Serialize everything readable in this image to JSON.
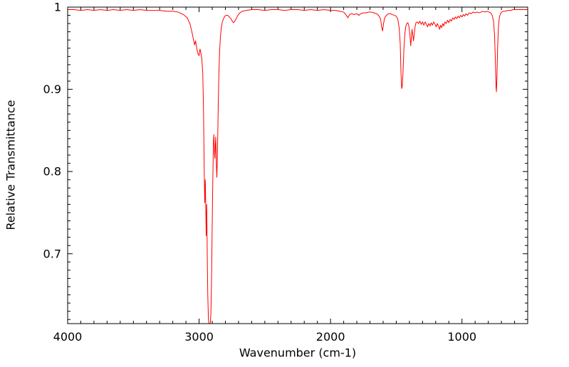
{
  "chart_data": {
    "type": "line",
    "xlabel": "Wavenumber (cm-1)",
    "ylabel": "Relative Transmittance",
    "background_color": "#ffffff",
    "line_color": "#ff0000",
    "axis_color": "#000000",
    "legend": "none",
    "grid": false,
    "x_axis": {
      "min": 500,
      "max": 4000,
      "reversed": true,
      "major_ticks": [
        4000,
        3000,
        2000,
        1000
      ],
      "major_tick_labels": [
        "4000",
        "3000",
        "2000",
        "1000"
      ],
      "minor_tick_interval": 100
    },
    "y_axis": {
      "min": 0.615,
      "max": 1.0,
      "major_ticks": [
        0.7,
        0.8,
        0.9,
        1
      ],
      "major_tick_labels": [
        "0.7",
        "0.8",
        "0.9",
        "1"
      ],
      "minor_tick_interval": 0.01
    },
    "series": [
      {
        "name": "IR transmittance spectrum",
        "points": [
          [
            4000,
            0.997
          ],
          [
            3950,
            0.997
          ],
          [
            3900,
            0.996
          ],
          [
            3850,
            0.997
          ],
          [
            3800,
            0.996
          ],
          [
            3750,
            0.997
          ],
          [
            3700,
            0.996
          ],
          [
            3650,
            0.997
          ],
          [
            3600,
            0.996
          ],
          [
            3550,
            0.997
          ],
          [
            3500,
            0.996
          ],
          [
            3450,
            0.997
          ],
          [
            3400,
            0.996
          ],
          [
            3350,
            0.996
          ],
          [
            3300,
            0.996
          ],
          [
            3250,
            0.995
          ],
          [
            3200,
            0.995
          ],
          [
            3160,
            0.994
          ],
          [
            3120,
            0.991
          ],
          [
            3090,
            0.987
          ],
          [
            3070,
            0.98
          ],
          [
            3055,
            0.97
          ],
          [
            3042,
            0.96
          ],
          [
            3034,
            0.954
          ],
          [
            3027,
            0.959
          ],
          [
            3018,
            0.95
          ],
          [
            3008,
            0.943
          ],
          [
            3000,
            0.941
          ],
          [
            2993,
            0.949
          ],
          [
            2986,
            0.944
          ],
          [
            2980,
            0.938
          ],
          [
            2972,
            0.92
          ],
          [
            2966,
            0.87
          ],
          [
            2961,
            0.8
          ],
          [
            2957,
            0.762
          ],
          [
            2953,
            0.79
          ],
          [
            2949,
            0.755
          ],
          [
            2946,
            0.722
          ],
          [
            2942,
            0.76
          ],
          [
            2938,
            0.7
          ],
          [
            2934,
            0.65
          ],
          [
            2929,
            0.62
          ],
          [
            2925,
            0.6145
          ],
          [
            2920,
            0.6135
          ],
          [
            2915,
            0.615
          ],
          [
            2910,
            0.628
          ],
          [
            2905,
            0.672
          ],
          [
            2901,
            0.725
          ],
          [
            2897,
            0.775
          ],
          [
            2893,
            0.815
          ],
          [
            2890,
            0.838
          ],
          [
            2888,
            0.845
          ],
          [
            2885,
            0.833
          ],
          [
            2882,
            0.82
          ],
          [
            2880,
            0.816
          ],
          [
            2877,
            0.827
          ],
          [
            2874,
            0.842
          ],
          [
            2871,
            0.831
          ],
          [
            2868,
            0.806
          ],
          [
            2865,
            0.793
          ],
          [
            2862,
            0.809
          ],
          [
            2858,
            0.843
          ],
          [
            2854,
            0.884
          ],
          [
            2849,
            0.921
          ],
          [
            2844,
            0.946
          ],
          [
            2838,
            0.963
          ],
          [
            2831,
            0.975
          ],
          [
            2823,
            0.982
          ],
          [
            2814,
            0.986
          ],
          [
            2804,
            0.989
          ],
          [
            2794,
            0.99
          ],
          [
            2782,
            0.99
          ],
          [
            2770,
            0.988
          ],
          [
            2758,
            0.986
          ],
          [
            2748,
            0.983
          ],
          [
            2738,
            0.981
          ],
          [
            2728,
            0.983
          ],
          [
            2718,
            0.986
          ],
          [
            2705,
            0.99
          ],
          [
            2690,
            0.993
          ],
          [
            2670,
            0.995
          ],
          [
            2640,
            0.996
          ],
          [
            2600,
            0.997
          ],
          [
            2550,
            0.997
          ],
          [
            2500,
            0.996
          ],
          [
            2450,
            0.997
          ],
          [
            2400,
            0.997
          ],
          [
            2350,
            0.996
          ],
          [
            2300,
            0.997
          ],
          [
            2250,
            0.997
          ],
          [
            2200,
            0.996
          ],
          [
            2150,
            0.997
          ],
          [
            2100,
            0.996
          ],
          [
            2050,
            0.997
          ],
          [
            2000,
            0.996
          ],
          [
            1960,
            0.996
          ],
          [
            1930,
            0.995
          ],
          [
            1900,
            0.994
          ],
          [
            1880,
            0.99
          ],
          [
            1868,
            0.987
          ],
          [
            1855,
            0.991
          ],
          [
            1840,
            0.992
          ],
          [
            1820,
            0.991
          ],
          [
            1800,
            0.992
          ],
          [
            1785,
            0.99
          ],
          [
            1770,
            0.992
          ],
          [
            1750,
            0.993
          ],
          [
            1730,
            0.993
          ],
          [
            1710,
            0.994
          ],
          [
            1690,
            0.994
          ],
          [
            1670,
            0.993
          ],
          [
            1650,
            0.992
          ],
          [
            1635,
            0.99
          ],
          [
            1620,
            0.986
          ],
          [
            1610,
            0.975
          ],
          [
            1604,
            0.971
          ],
          [
            1597,
            0.98
          ],
          [
            1588,
            0.987
          ],
          [
            1575,
            0.99
          ],
          [
            1560,
            0.992
          ],
          [
            1545,
            0.992
          ],
          [
            1530,
            0.991
          ],
          [
            1515,
            0.99
          ],
          [
            1500,
            0.989
          ],
          [
            1488,
            0.985
          ],
          [
            1478,
            0.975
          ],
          [
            1470,
            0.956
          ],
          [
            1464,
            0.92
          ],
          [
            1459,
            0.901
          ],
          [
            1455,
            0.903
          ],
          [
            1449,
            0.92
          ],
          [
            1442,
            0.948
          ],
          [
            1435,
            0.967
          ],
          [
            1428,
            0.976
          ],
          [
            1420,
            0.98
          ],
          [
            1412,
            0.981
          ],
          [
            1404,
            0.977
          ],
          [
            1396,
            0.966
          ],
          [
            1390,
            0.953
          ],
          [
            1385,
            0.963
          ],
          [
            1380,
            0.973
          ],
          [
            1374,
            0.966
          ],
          [
            1369,
            0.959
          ],
          [
            1364,
            0.966
          ],
          [
            1357,
            0.976
          ],
          [
            1350,
            0.981
          ],
          [
            1340,
            0.982
          ],
          [
            1330,
            0.98
          ],
          [
            1320,
            0.983
          ],
          [
            1310,
            0.979
          ],
          [
            1300,
            0.982
          ],
          [
            1290,
            0.978
          ],
          [
            1280,
            0.982
          ],
          [
            1270,
            0.979
          ],
          [
            1262,
            0.976
          ],
          [
            1252,
            0.98
          ],
          [
            1243,
            0.977
          ],
          [
            1234,
            0.981
          ],
          [
            1225,
            0.978
          ],
          [
            1215,
            0.982
          ],
          [
            1205,
            0.979
          ],
          [
            1196,
            0.976
          ],
          [
            1188,
            0.98
          ],
          [
            1178,
            0.977
          ],
          [
            1170,
            0.973
          ],
          [
            1162,
            0.978
          ],
          [
            1154,
            0.975
          ],
          [
            1146,
            0.98
          ],
          [
            1138,
            0.977
          ],
          [
            1130,
            0.982
          ],
          [
            1120,
            0.98
          ],
          [
            1110,
            0.984
          ],
          [
            1100,
            0.981
          ],
          [
            1090,
            0.985
          ],
          [
            1080,
            0.983
          ],
          [
            1070,
            0.987
          ],
          [
            1060,
            0.985
          ],
          [
            1050,
            0.988
          ],
          [
            1040,
            0.986
          ],
          [
            1030,
            0.989
          ],
          [
            1020,
            0.987
          ],
          [
            1010,
            0.99
          ],
          [
            1000,
            0.988
          ],
          [
            990,
            0.991
          ],
          [
            980,
            0.989
          ],
          [
            970,
            0.992
          ],
          [
            958,
            0.99
          ],
          [
            945,
            0.993
          ],
          [
            930,
            0.992
          ],
          [
            915,
            0.994
          ],
          [
            900,
            0.993
          ],
          [
            885,
            0.994
          ],
          [
            870,
            0.993
          ],
          [
            855,
            0.994
          ],
          [
            840,
            0.995
          ],
          [
            825,
            0.994
          ],
          [
            810,
            0.995
          ],
          [
            795,
            0.994
          ],
          [
            782,
            0.993
          ],
          [
            770,
            0.99
          ],
          [
            760,
            0.983
          ],
          [
            752,
            0.965
          ],
          [
            746,
            0.935
          ],
          [
            741,
            0.903
          ],
          [
            738,
            0.897
          ],
          [
            734,
            0.915
          ],
          [
            729,
            0.95
          ],
          [
            723,
            0.975
          ],
          [
            716,
            0.987
          ],
          [
            708,
            0.992
          ],
          [
            698,
            0.994
          ],
          [
            685,
            0.995
          ],
          [
            670,
            0.995
          ],
          [
            650,
            0.996
          ],
          [
            630,
            0.996
          ],
          [
            610,
            0.997
          ],
          [
            590,
            0.997
          ],
          [
            570,
            0.997
          ],
          [
            550,
            0.997
          ],
          [
            530,
            0.997
          ],
          [
            500,
            0.997
          ]
        ]
      }
    ]
  }
}
